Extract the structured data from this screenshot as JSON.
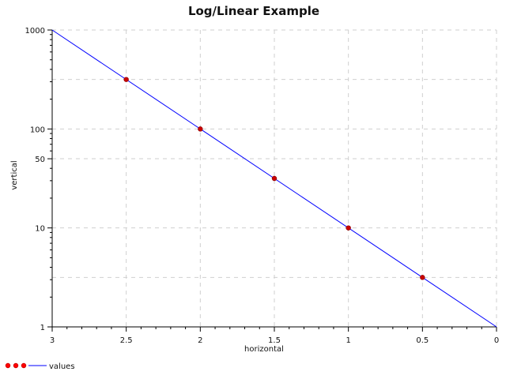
{
  "chart_data": {
    "type": "line",
    "title": "Log/Linear Example",
    "xlabel": "horizontal",
    "ylabel": "vertical",
    "xlim": [
      3,
      0
    ],
    "ylim": [
      1,
      1000
    ],
    "y_scale": "log",
    "x_reversed": true,
    "grid": true,
    "legend_placement": "bottom-left",
    "x_ticks": [
      3,
      2.5,
      2,
      1.5,
      1,
      0.5,
      0
    ],
    "x_tick_labels": [
      "3",
      "2.5",
      "2",
      "1.5",
      "1",
      "0.5",
      "0"
    ],
    "y_ticks": [
      1,
      10,
      50,
      100,
      1000
    ],
    "y_tick_labels": [
      "1",
      "10",
      "50",
      "100",
      "1000"
    ],
    "series": [
      {
        "name": "values",
        "line_color": "#0000ff",
        "marker_color": "#cc0000",
        "line_points": [
          {
            "x": 3,
            "y": 1000
          },
          {
            "x": 0,
            "y": 1
          }
        ],
        "marker_points": [
          {
            "x": 2.5,
            "y": 316.2
          },
          {
            "x": 2,
            "y": 100
          },
          {
            "x": 1.5,
            "y": 31.62
          },
          {
            "x": 1,
            "y": 10
          },
          {
            "x": 0.5,
            "y": 3.162
          }
        ]
      }
    ]
  }
}
